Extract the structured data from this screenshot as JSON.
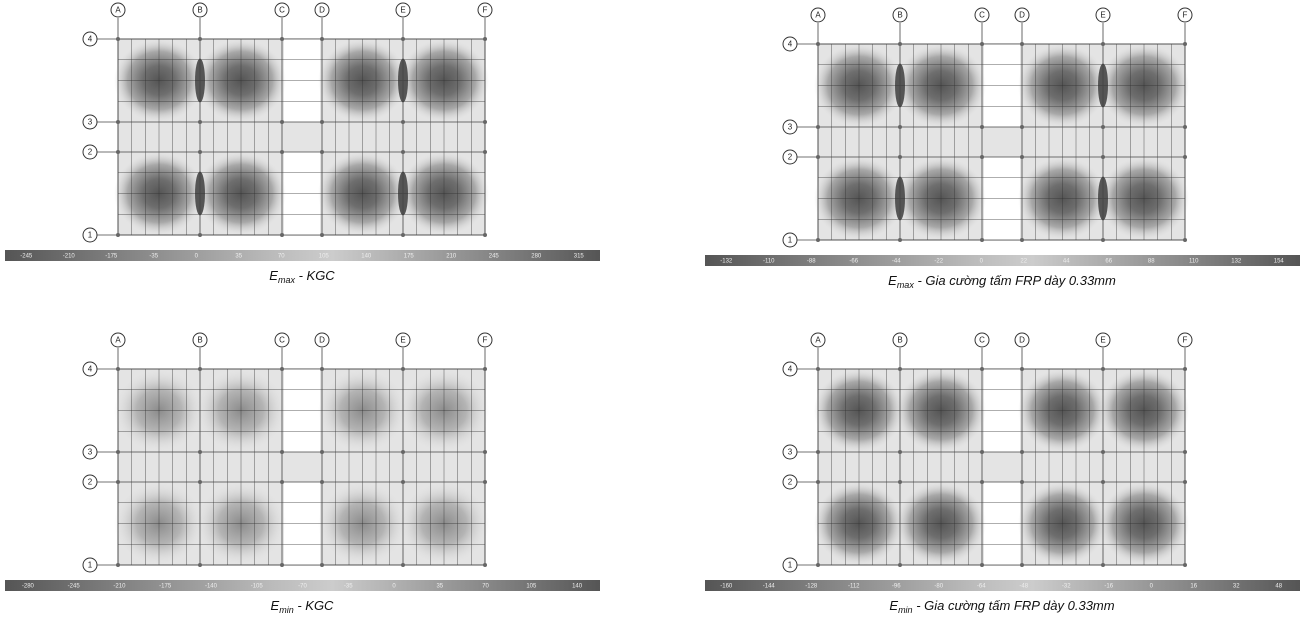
{
  "panels": [
    {
      "columns": [
        "A",
        "B",
        "C",
        "D",
        "E",
        "F"
      ],
      "rows": [
        "4",
        "3",
        "2",
        "1"
      ],
      "colorbar": [
        "-245",
        "-210",
        "-175",
        "-35",
        "0",
        "35",
        "70",
        "105",
        "140",
        "175",
        "210",
        "245",
        "280",
        "315"
      ],
      "caption": {
        "symbol": "E",
        "subscript": "max",
        "text": " - KGC"
      }
    },
    {
      "columns": [
        "A",
        "B",
        "C",
        "D",
        "E",
        "F"
      ],
      "rows": [
        "4",
        "3",
        "2",
        "1"
      ],
      "colorbar": [
        "-132",
        "-110",
        "-88",
        "-66",
        "-44",
        "-22",
        "0",
        "22",
        "44",
        "66",
        "88",
        "110",
        "132",
        "154"
      ],
      "caption": {
        "symbol": "E",
        "subscript": "max",
        "text": " - Gia cường tấm FRP dày 0.33mm"
      }
    },
    {
      "columns": [
        "A",
        "B",
        "C",
        "D",
        "E",
        "F"
      ],
      "rows": [
        "4",
        "3",
        "2",
        "1"
      ],
      "colorbar": [
        "-280",
        "-245",
        "-210",
        "-175",
        "-140",
        "-105",
        "-70",
        "-35",
        "0",
        "35",
        "70",
        "105",
        "140"
      ],
      "caption": {
        "symbol": "E",
        "subscript": "min",
        "text": " - KGC"
      }
    },
    {
      "columns": [
        "A",
        "B",
        "C",
        "D",
        "E",
        "F"
      ],
      "rows": [
        "4",
        "3",
        "2",
        "1"
      ],
      "colorbar": [
        "-160",
        "-144",
        "-128",
        "-112",
        "-96",
        "-80",
        "-64",
        "-48",
        "-32",
        "-16",
        "0",
        "16",
        "32",
        "48"
      ],
      "caption": {
        "symbol": "E",
        "subscript": "min",
        "text": " - Gia cường tấm FRP dày 0.33mm"
      }
    }
  ]
}
